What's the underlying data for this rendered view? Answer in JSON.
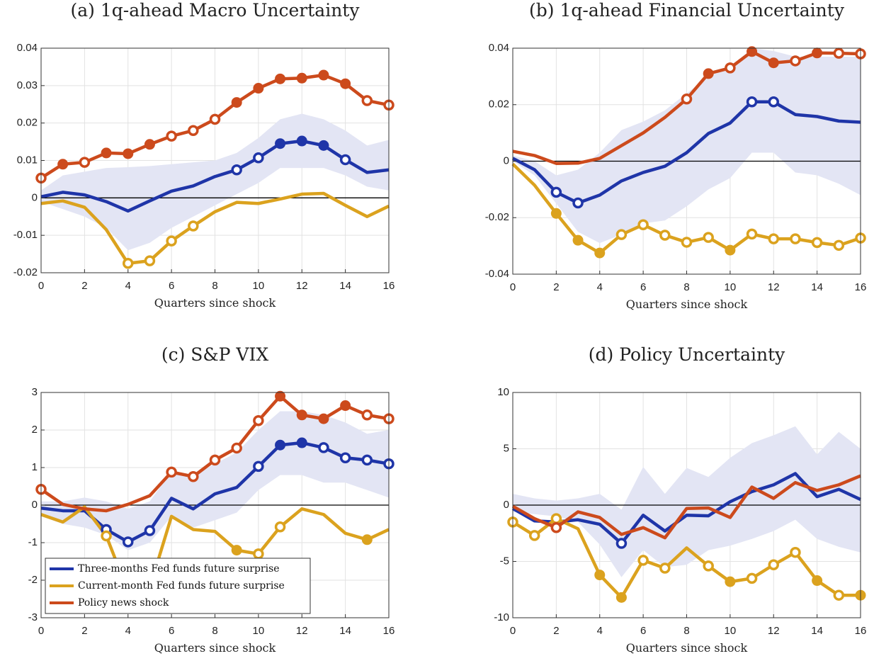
{
  "chart_data": [
    {
      "type": "line",
      "title": "(a) 1q-ahead Macro Uncertainty",
      "x_label": "Quarters since shock",
      "x": [
        0,
        1,
        2,
        3,
        4,
        5,
        6,
        7,
        8,
        9,
        10,
        11,
        12,
        13,
        14,
        15,
        16
      ],
      "xlim": [
        0,
        16
      ],
      "xticks": [
        0,
        2,
        4,
        6,
        8,
        10,
        12,
        14,
        16
      ],
      "ylim": [
        -0.02,
        0.04
      ],
      "yticks": [
        -0.02,
        -0.01,
        0,
        0.01,
        0.02,
        0.03,
        0.04
      ],
      "grid": true,
      "band_color": "#e3e5f4",
      "band": {
        "lower": [
          -0.001,
          -0.003,
          -0.005,
          -0.008,
          -0.014,
          -0.012,
          -0.008,
          -0.005,
          -0.002,
          0.001,
          0.004,
          0.008,
          0.008,
          0.008,
          0.006,
          0.003,
          0.002
        ],
        "upper": [
          0.002,
          0.006,
          0.007,
          0.008,
          0.0082,
          0.0085,
          0.009,
          0.0095,
          0.01,
          0.012,
          0.016,
          0.021,
          0.0225,
          0.021,
          0.018,
          0.014,
          0.0155
        ]
      },
      "series": [
        {
          "color": "#1f35a8",
          "values": [
            0.0003,
            0.0015,
            0.0008,
            -0.001,
            -0.0035,
            -0.0008,
            0.0018,
            0.0032,
            0.0057,
            0.0075,
            0.0107,
            0.0145,
            0.0152,
            0.014,
            0.0102,
            0.0068,
            0.0075
          ],
          "markers": [
            null,
            null,
            null,
            null,
            null,
            null,
            null,
            null,
            null,
            "open",
            "open",
            "filled",
            "filled",
            "filled",
            "open",
            null,
            null
          ]
        },
        {
          "color": "#dba21e",
          "values": [
            -0.0015,
            -0.0008,
            -0.0025,
            -0.0085,
            -0.0175,
            -0.0168,
            -0.0115,
            -0.0075,
            -0.0037,
            -0.0012,
            -0.0015,
            -0.0003,
            0.001,
            0.0012,
            -0.002,
            -0.005,
            -0.0022
          ],
          "markers": [
            null,
            null,
            null,
            null,
            "open",
            "open",
            "open",
            "open",
            null,
            null,
            null,
            null,
            null,
            null,
            null,
            null,
            null
          ]
        },
        {
          "color": "#cc4a1c",
          "values": [
            0.0053,
            0.009,
            0.0095,
            0.012,
            0.0118,
            0.0143,
            0.0165,
            0.018,
            0.021,
            0.0255,
            0.0293,
            0.0318,
            0.032,
            0.0328,
            0.0305,
            0.026,
            0.0248
          ],
          "markers": [
            "open",
            "filled",
            "open",
            "filled",
            "filled",
            "filled",
            "open",
            "open",
            "open",
            "filled",
            "filled",
            "filled",
            "filled",
            "filled",
            "filled",
            "open",
            "open"
          ]
        }
      ]
    },
    {
      "type": "line",
      "title": "(b) 1q-ahead Financial Uncertainty",
      "x_label": "Quarters since shock",
      "x": [
        0,
        1,
        2,
        3,
        4,
        5,
        6,
        7,
        8,
        9,
        10,
        11,
        12,
        13,
        14,
        15,
        16
      ],
      "xlim": [
        0,
        16
      ],
      "xticks": [
        0,
        2,
        4,
        6,
        8,
        10,
        12,
        14,
        16
      ],
      "ylim": [
        -0.04,
        0.04
      ],
      "yticks": [
        -0.04,
        -0.02,
        0,
        0.02,
        0.04
      ],
      "grid": true,
      "band_color": "#e3e5f4",
      "band": {
        "lower": [
          0,
          -0.005,
          -0.015,
          -0.025,
          -0.029,
          -0.026,
          -0.022,
          -0.021,
          -0.016,
          -0.01,
          -0.006,
          0.003,
          0.003,
          -0.004,
          -0.005,
          -0.008,
          -0.012
        ],
        "upper": [
          0.002,
          0,
          -0.005,
          -0.003,
          0.003,
          0.011,
          0.014,
          0.018,
          0.024,
          0.03,
          0.033,
          0.04,
          0.039,
          0.037,
          0.037,
          0.037,
          0.037
        ]
      },
      "series": [
        {
          "color": "#1f35a8",
          "values": [
            0.001,
            -0.003,
            -0.011,
            -0.0148,
            -0.012,
            -0.007,
            -0.004,
            -0.0018,
            0.003,
            0.0098,
            0.0135,
            0.021,
            0.021,
            0.0165,
            0.0158,
            0.0142,
            0.0138
          ],
          "markers": [
            null,
            null,
            "open",
            "open",
            null,
            null,
            null,
            null,
            null,
            null,
            null,
            "open",
            "open",
            null,
            null,
            null,
            null
          ]
        },
        {
          "color": "#dba21e",
          "values": [
            -0.001,
            -0.0085,
            -0.0185,
            -0.028,
            -0.0325,
            -0.026,
            -0.0225,
            -0.0262,
            -0.0287,
            -0.027,
            -0.0315,
            -0.0258,
            -0.0275,
            -0.0275,
            -0.0288,
            -0.0298,
            -0.0272
          ],
          "markers": [
            null,
            null,
            "filled",
            "filled",
            "filled",
            "open",
            "open",
            "open",
            "open",
            "open",
            "filled",
            "open",
            "open",
            "open",
            "open",
            "open",
            "open"
          ]
        },
        {
          "color": "#cc4a1c",
          "values": [
            0.0035,
            0.002,
            -0.0008,
            -0.0007,
            0.001,
            0.0055,
            0.01,
            0.0155,
            0.022,
            0.031,
            0.033,
            0.0388,
            0.0348,
            0.0355,
            0.0383,
            0.0382,
            0.038
          ],
          "markers": [
            null,
            null,
            null,
            null,
            null,
            null,
            null,
            null,
            "open",
            "filled",
            "open",
            "filled",
            "filled",
            "open",
            "filled",
            "open",
            "open"
          ]
        }
      ]
    },
    {
      "type": "line",
      "title": "(c) S&P VIX",
      "x_label": "Quarters since shock",
      "legend": "lower left",
      "x": [
        0,
        1,
        2,
        3,
        4,
        5,
        6,
        7,
        8,
        9,
        10,
        11,
        12,
        13,
        14,
        15,
        16
      ],
      "xlim": [
        0,
        16
      ],
      "xticks": [
        0,
        2,
        4,
        6,
        8,
        10,
        12,
        14,
        16
      ],
      "ylim": [
        -3,
        3
      ],
      "yticks": [
        -3,
        -2,
        -1,
        0,
        1,
        2,
        3
      ],
      "grid": true,
      "band_color": "#e3e5f4",
      "band": {
        "lower": [
          -0.3,
          -0.5,
          -0.6,
          -0.8,
          -1.2,
          -1.0,
          -0.3,
          -0.6,
          -0.4,
          -0.2,
          0.4,
          0.8,
          0.8,
          0.6,
          0.6,
          0.4,
          0.2
        ],
        "upper": [
          0.1,
          0.1,
          0.2,
          0.1,
          -0.1,
          0.1,
          0.9,
          0.8,
          1.1,
          1.4,
          2.0,
          2.5,
          2.5,
          2.4,
          2.2,
          1.9,
          2.0
        ]
      },
      "series": [
        {
          "name": "Three-months Fed funds future surprise",
          "color": "#1f35a8",
          "values": [
            -0.08,
            -0.15,
            -0.15,
            -0.65,
            -0.98,
            -0.68,
            0.18,
            -0.1,
            0.3,
            0.47,
            1.03,
            1.6,
            1.66,
            1.53,
            1.26,
            1.2,
            1.1
          ],
          "markers": [
            null,
            null,
            null,
            "open",
            "open",
            "open",
            null,
            null,
            null,
            null,
            "open",
            "filled",
            "filled",
            "open",
            "open",
            "open",
            "open"
          ]
        },
        {
          "name": "Current-month Fed funds future surprise",
          "color": "#dba21e",
          "values": [
            -0.25,
            -0.45,
            -0.05,
            -0.82,
            -2.3,
            -2.2,
            -0.3,
            -0.65,
            -0.7,
            -1.2,
            -1.3,
            -0.58,
            -0.1,
            -0.25,
            -0.75,
            -0.92,
            -0.65
          ],
          "markers": [
            null,
            null,
            null,
            "open",
            null,
            null,
            null,
            null,
            null,
            "filled",
            "open",
            "open",
            null,
            null,
            null,
            "filled",
            null
          ]
        },
        {
          "name": "Policy news shock",
          "color": "#cc4a1c",
          "values": [
            0.42,
            0.02,
            -0.1,
            -0.15,
            0.02,
            0.25,
            0.88,
            0.76,
            1.2,
            1.52,
            2.25,
            2.9,
            2.4,
            2.3,
            2.65,
            2.4,
            2.3
          ],
          "markers": [
            "open",
            null,
            null,
            null,
            null,
            null,
            "open",
            "open",
            "open",
            "open",
            "open",
            "filled",
            "filled",
            "filled",
            "filled",
            "open",
            "open"
          ]
        }
      ]
    },
    {
      "type": "line",
      "title": "(d) Policy Uncertainty",
      "x_label": "Quarters since shock",
      "x": [
        0,
        1,
        2,
        3,
        4,
        5,
        6,
        7,
        8,
        9,
        10,
        11,
        12,
        13,
        14,
        15,
        16
      ],
      "xlim": [
        0,
        16
      ],
      "xticks": [
        0,
        2,
        4,
        6,
        8,
        10,
        12,
        14,
        16
      ],
      "ylim": [
        -10,
        10
      ],
      "yticks": [
        -10,
        -5,
        0,
        5,
        10
      ],
      "grid": true,
      "band_color": "#e3e5f4",
      "band": {
        "lower": [
          -0.6,
          -0.8,
          -1,
          -1.5,
          -3.5,
          -6.4,
          -4,
          -5.5,
          -5.3,
          -4,
          -3.6,
          -3,
          -2.3,
          -1.3,
          -3,
          -3.7,
          -4.2
        ],
        "upper": [
          1,
          0.6,
          0.4,
          0.6,
          1,
          -0.4,
          3.4,
          1,
          3.3,
          2.5,
          4.2,
          5.5,
          6.2,
          7,
          4.5,
          6.5,
          5
        ]
      },
      "series": [
        {
          "color": "#1f35a8",
          "values": [
            -0.3,
            -1.4,
            -1.5,
            -1.3,
            -1.7,
            -3.4,
            -0.9,
            -2.3,
            -0.9,
            -0.95,
            0.3,
            1.2,
            1.8,
            2.8,
            0.75,
            1.4,
            0.5
          ],
          "markers": [
            null,
            null,
            null,
            null,
            null,
            "open",
            null,
            null,
            null,
            null,
            null,
            null,
            null,
            null,
            null,
            null,
            null
          ]
        },
        {
          "color": "#dba21e",
          "values": [
            -1.5,
            -2.7,
            -1.2,
            -2.1,
            -6.2,
            -8.2,
            -4.9,
            -5.6,
            -3.8,
            -5.4,
            -6.8,
            -6.5,
            -5.3,
            -4.2,
            -6.7,
            -8,
            -8
          ],
          "markers": [
            "open",
            "open",
            "open",
            null,
            "filled",
            "filled",
            "open",
            "open",
            null,
            "open",
            "filled",
            "open",
            "open",
            "open",
            "filled",
            "open",
            "filled"
          ]
        },
        {
          "color": "#cc4a1c",
          "values": [
            -0.1,
            -1.2,
            -2,
            -0.6,
            -1.1,
            -2.6,
            -2,
            -2.9,
            -0.3,
            -0.25,
            -1.1,
            1.6,
            0.6,
            2.0,
            1.3,
            1.8,
            2.6
          ],
          "markers": [
            null,
            null,
            "open",
            null,
            null,
            null,
            null,
            null,
            null,
            null,
            null,
            null,
            null,
            null,
            null,
            null,
            null
          ]
        }
      ]
    }
  ]
}
